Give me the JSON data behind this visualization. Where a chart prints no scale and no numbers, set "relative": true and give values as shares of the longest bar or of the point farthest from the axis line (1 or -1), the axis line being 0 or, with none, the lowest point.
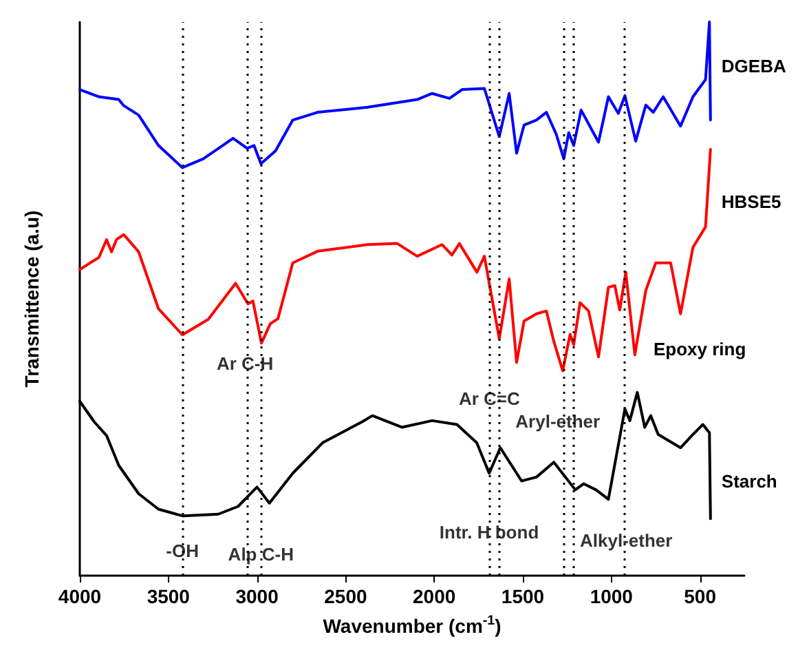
{
  "chart_data": {
    "type": "line",
    "relative": true,
    "xlabel": "Wavenumber (cm$^{-1}$)",
    "ylabel": "Transmittence (a.u)",
    "xlim": [
      4000,
      250
    ],
    "xticks": [
      4000,
      3500,
      3000,
      2500,
      2000,
      1500,
      1000,
      500
    ],
    "grid": false,
    "legend": false,
    "marker": "none",
    "line_style": "solid",
    "series": [
      {
        "name": "DGEBA",
        "color": "#0000ff",
        "x": [
          4000,
          3892,
          3780,
          3752,
          3668,
          3556,
          3421,
          3303,
          3135,
          3056,
          3017,
          2978,
          2896,
          2798,
          2658,
          2377,
          2096,
          2012,
          1914,
          1843,
          1717,
          1633,
          1577,
          1535,
          1493,
          1423,
          1367,
          1311,
          1269,
          1241,
          1213,
          1171,
          1073,
          1017,
          961,
          924,
          863,
          806,
          764,
          708,
          610,
          540,
          469,
          447,
          441
        ],
        "values": [
          0.878,
          0.865,
          0.86,
          0.849,
          0.832,
          0.777,
          0.737,
          0.753,
          0.79,
          0.772,
          0.777,
          0.744,
          0.767,
          0.823,
          0.837,
          0.846,
          0.86,
          0.871,
          0.862,
          0.878,
          0.88,
          0.793,
          0.871,
          0.763,
          0.814,
          0.823,
          0.837,
          0.797,
          0.753,
          0.8,
          0.777,
          0.841,
          0.783,
          0.865,
          0.835,
          0.867,
          0.785,
          0.85,
          0.837,
          0.865,
          0.812,
          0.865,
          0.896,
          1.0,
          0.823
        ]
      },
      {
        "name": "HBSE5",
        "color": "#ff0000",
        "x": [
          4000,
          3892,
          3849,
          3821,
          3793,
          3752,
          3668,
          3556,
          3421,
          3275,
          3121,
          3051,
          3023,
          2975,
          2925,
          2882,
          2798,
          2658,
          2377,
          2209,
          2096,
          1956,
          1900,
          1858,
          1759,
          1717,
          1633,
          1577,
          1535,
          1493,
          1423,
          1367,
          1325,
          1275,
          1233,
          1213,
          1177,
          1129,
          1073,
          1017,
          981,
          953,
          919,
          868,
          806,
          750,
          666,
          610,
          540,
          469,
          441
        ],
        "values": [
          0.553,
          0.575,
          0.607,
          0.585,
          0.607,
          0.616,
          0.585,
          0.482,
          0.435,
          0.463,
          0.528,
          0.491,
          0.496,
          0.42,
          0.455,
          0.464,
          0.565,
          0.586,
          0.598,
          0.6,
          0.577,
          0.598,
          0.579,
          0.6,
          0.548,
          0.577,
          0.428,
          0.536,
          0.385,
          0.46,
          0.473,
          0.478,
          0.423,
          0.37,
          0.436,
          0.417,
          0.493,
          0.478,
          0.395,
          0.521,
          0.524,
          0.48,
          0.548,
          0.399,
          0.515,
          0.565,
          0.565,
          0.473,
          0.593,
          0.63,
          0.77
        ]
      },
      {
        "name": "Starch",
        "color": "#000000",
        "x": [
          4000,
          3919,
          3849,
          3780,
          3668,
          3556,
          3421,
          3219,
          3107,
          3000,
          2930,
          2798,
          2630,
          2406,
          2349,
          2181,
          2012,
          1872,
          1760,
          1690,
          1627,
          1507,
          1423,
          1325,
          1204,
          1157,
          1087,
          1017,
          924,
          896,
          854,
          812,
          778,
          736,
          610,
          540,
          484,
          447,
          441
        ],
        "values": [
          0.315,
          0.278,
          0.253,
          0.199,
          0.148,
          0.12,
          0.108,
          0.111,
          0.125,
          0.16,
          0.131,
          0.185,
          0.24,
          0.278,
          0.289,
          0.268,
          0.28,
          0.273,
          0.24,
          0.185,
          0.231,
          0.171,
          0.178,
          0.205,
          0.155,
          0.166,
          0.155,
          0.138,
          0.301,
          0.28,
          0.331,
          0.268,
          0.289,
          0.255,
          0.231,
          0.255,
          0.273,
          0.258,
          0.103
        ]
      }
    ],
    "ref_lines": [
      {
        "axis": "x",
        "value": 3421,
        "color": "#000000",
        "line_style": "dotted"
      },
      {
        "axis": "x",
        "value": 3056,
        "color": "#000000",
        "line_style": "dotted"
      },
      {
        "axis": "x",
        "value": 2978,
        "color": "#000000",
        "line_style": "dotted"
      },
      {
        "axis": "x",
        "value": 1690,
        "color": "#000000",
        "line_style": "dotted"
      },
      {
        "axis": "x",
        "value": 1633,
        "color": "#000000",
        "line_style": "dotted"
      },
      {
        "axis": "x",
        "value": 1269,
        "color": "#000000",
        "line_style": "dotted"
      },
      {
        "axis": "x",
        "value": 1213,
        "color": "#000000",
        "line_style": "dotted"
      },
      {
        "axis": "x",
        "value": 924,
        "color": "#000000",
        "line_style": "dotted"
      }
    ],
    "annotations": [
      {
        "text": "-OH",
        "x": 3421,
        "y": 0.045
      },
      {
        "text": "Alp C-H",
        "x": 2978,
        "y": 0.038
      },
      {
        "text": "Intr. H bond",
        "x": 1690,
        "y": 0.078
      },
      {
        "text": "Alkyl-ether",
        "x": 917,
        "y": 0.063
      },
      {
        "text": "Aryl-ether",
        "x": 1303,
        "y": 0.278
      },
      {
        "text": "Ar C=C",
        "x": 1689,
        "y": 0.32
      },
      {
        "text": "Ar C-H",
        "x": 3068,
        "y": 0.383
      },
      "Epoxy ring"
    ]
  }
}
